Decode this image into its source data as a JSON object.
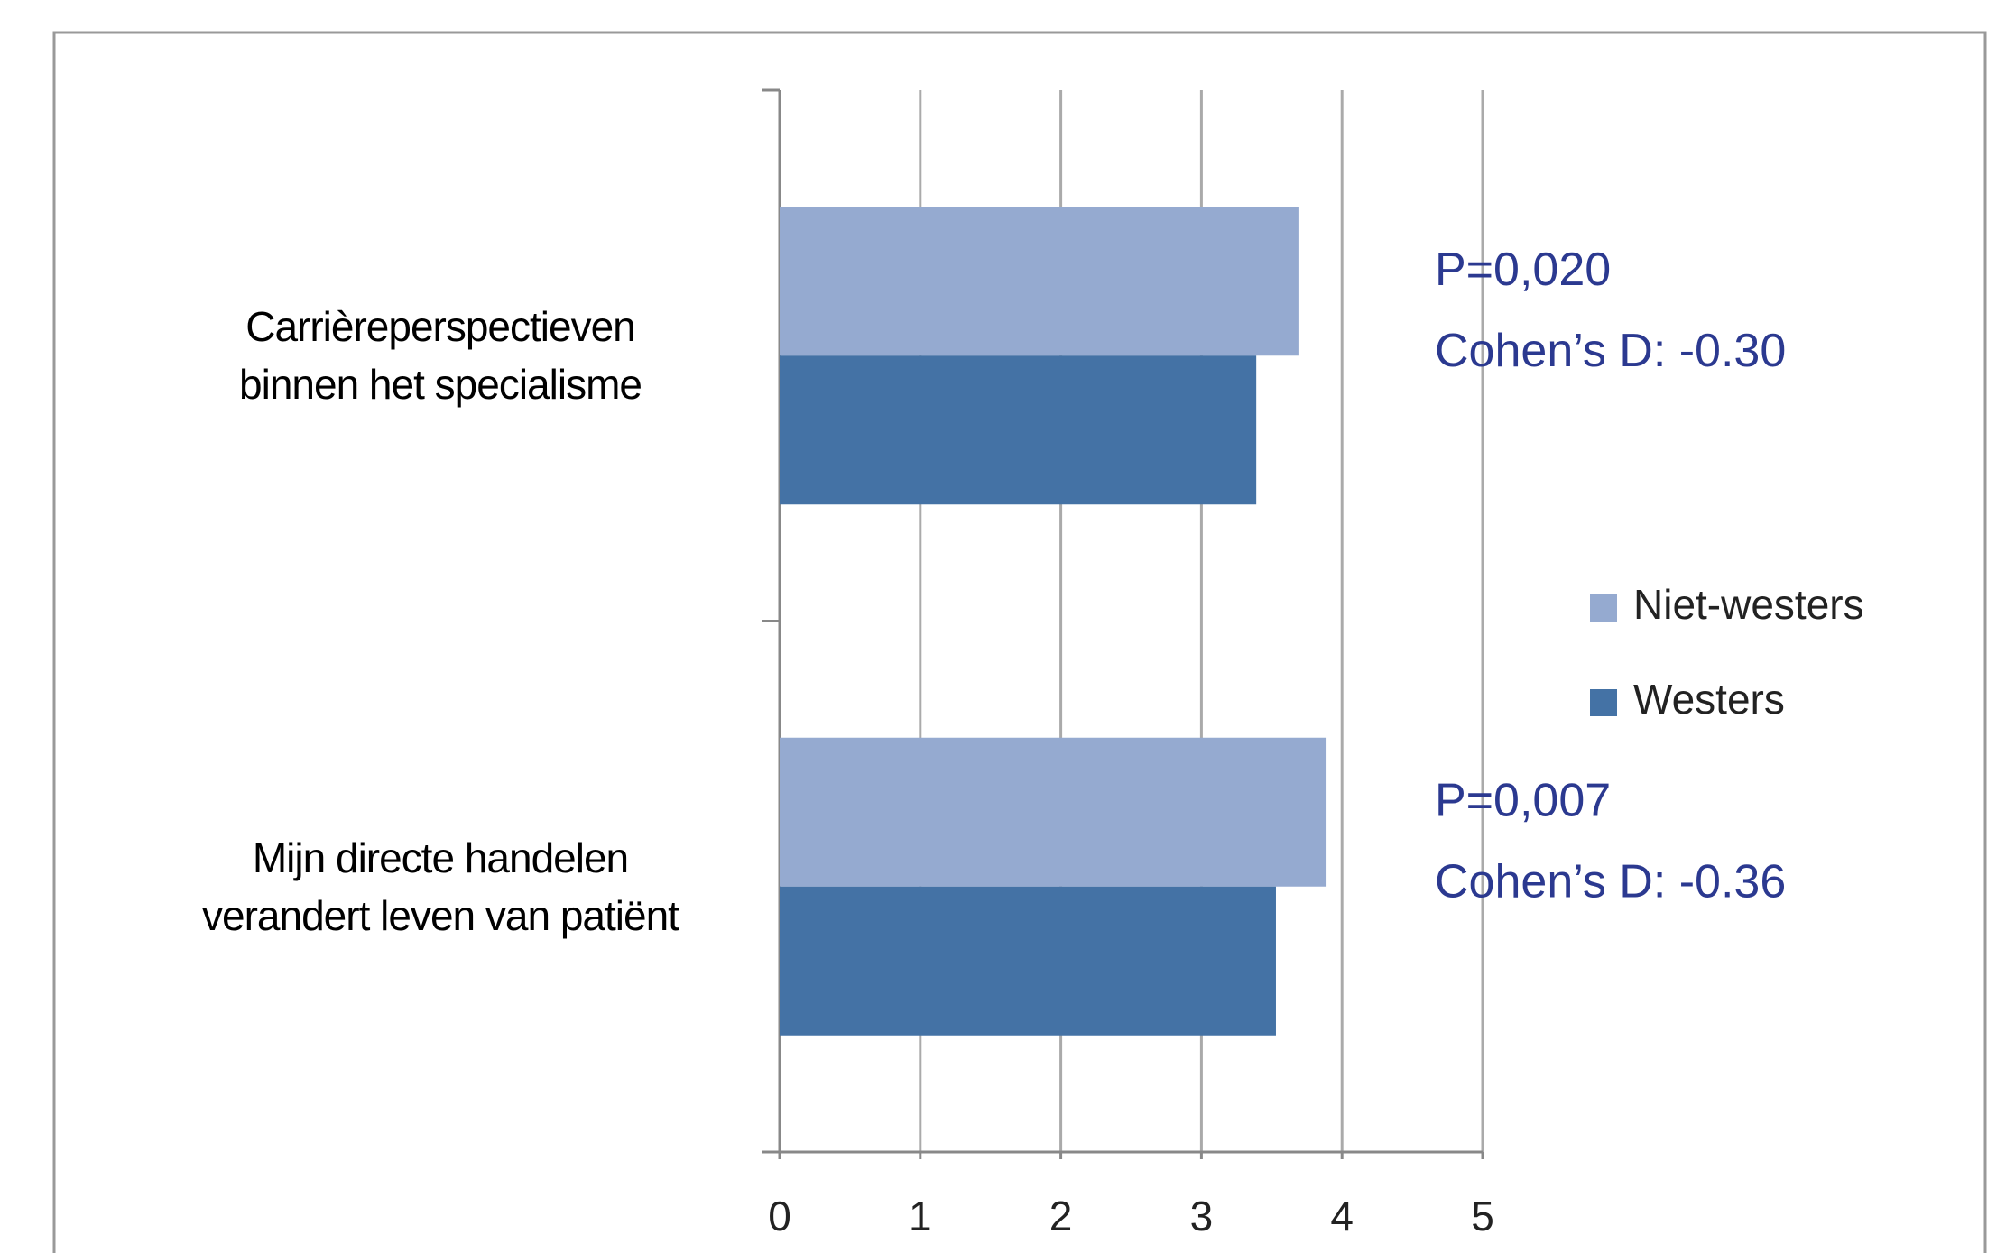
{
  "chart_data": {
    "type": "bar",
    "orientation": "horizontal",
    "categories": [
      "Carrièreperspectieven\nbinnen het specialisme",
      "Mijn directe handelen\nverandert leven van patiënt"
    ],
    "series": [
      {
        "name": "Niet-westers",
        "color": "#95aad0",
        "values": [
          3.69,
          3.89
        ]
      },
      {
        "name": "Westers",
        "color": "#4472a5",
        "values": [
          3.39,
          3.53
        ]
      }
    ],
    "xlim": [
      0,
      5
    ],
    "xticks": [
      0,
      1,
      2,
      3,
      4,
      5
    ],
    "grid": true,
    "legend": "right",
    "annotations": [
      [
        "P=0,020",
        "Cohen’s D: -0.30"
      ],
      [
        "P=0,007",
        "Cohen’s D: -0.36"
      ]
    ]
  }
}
